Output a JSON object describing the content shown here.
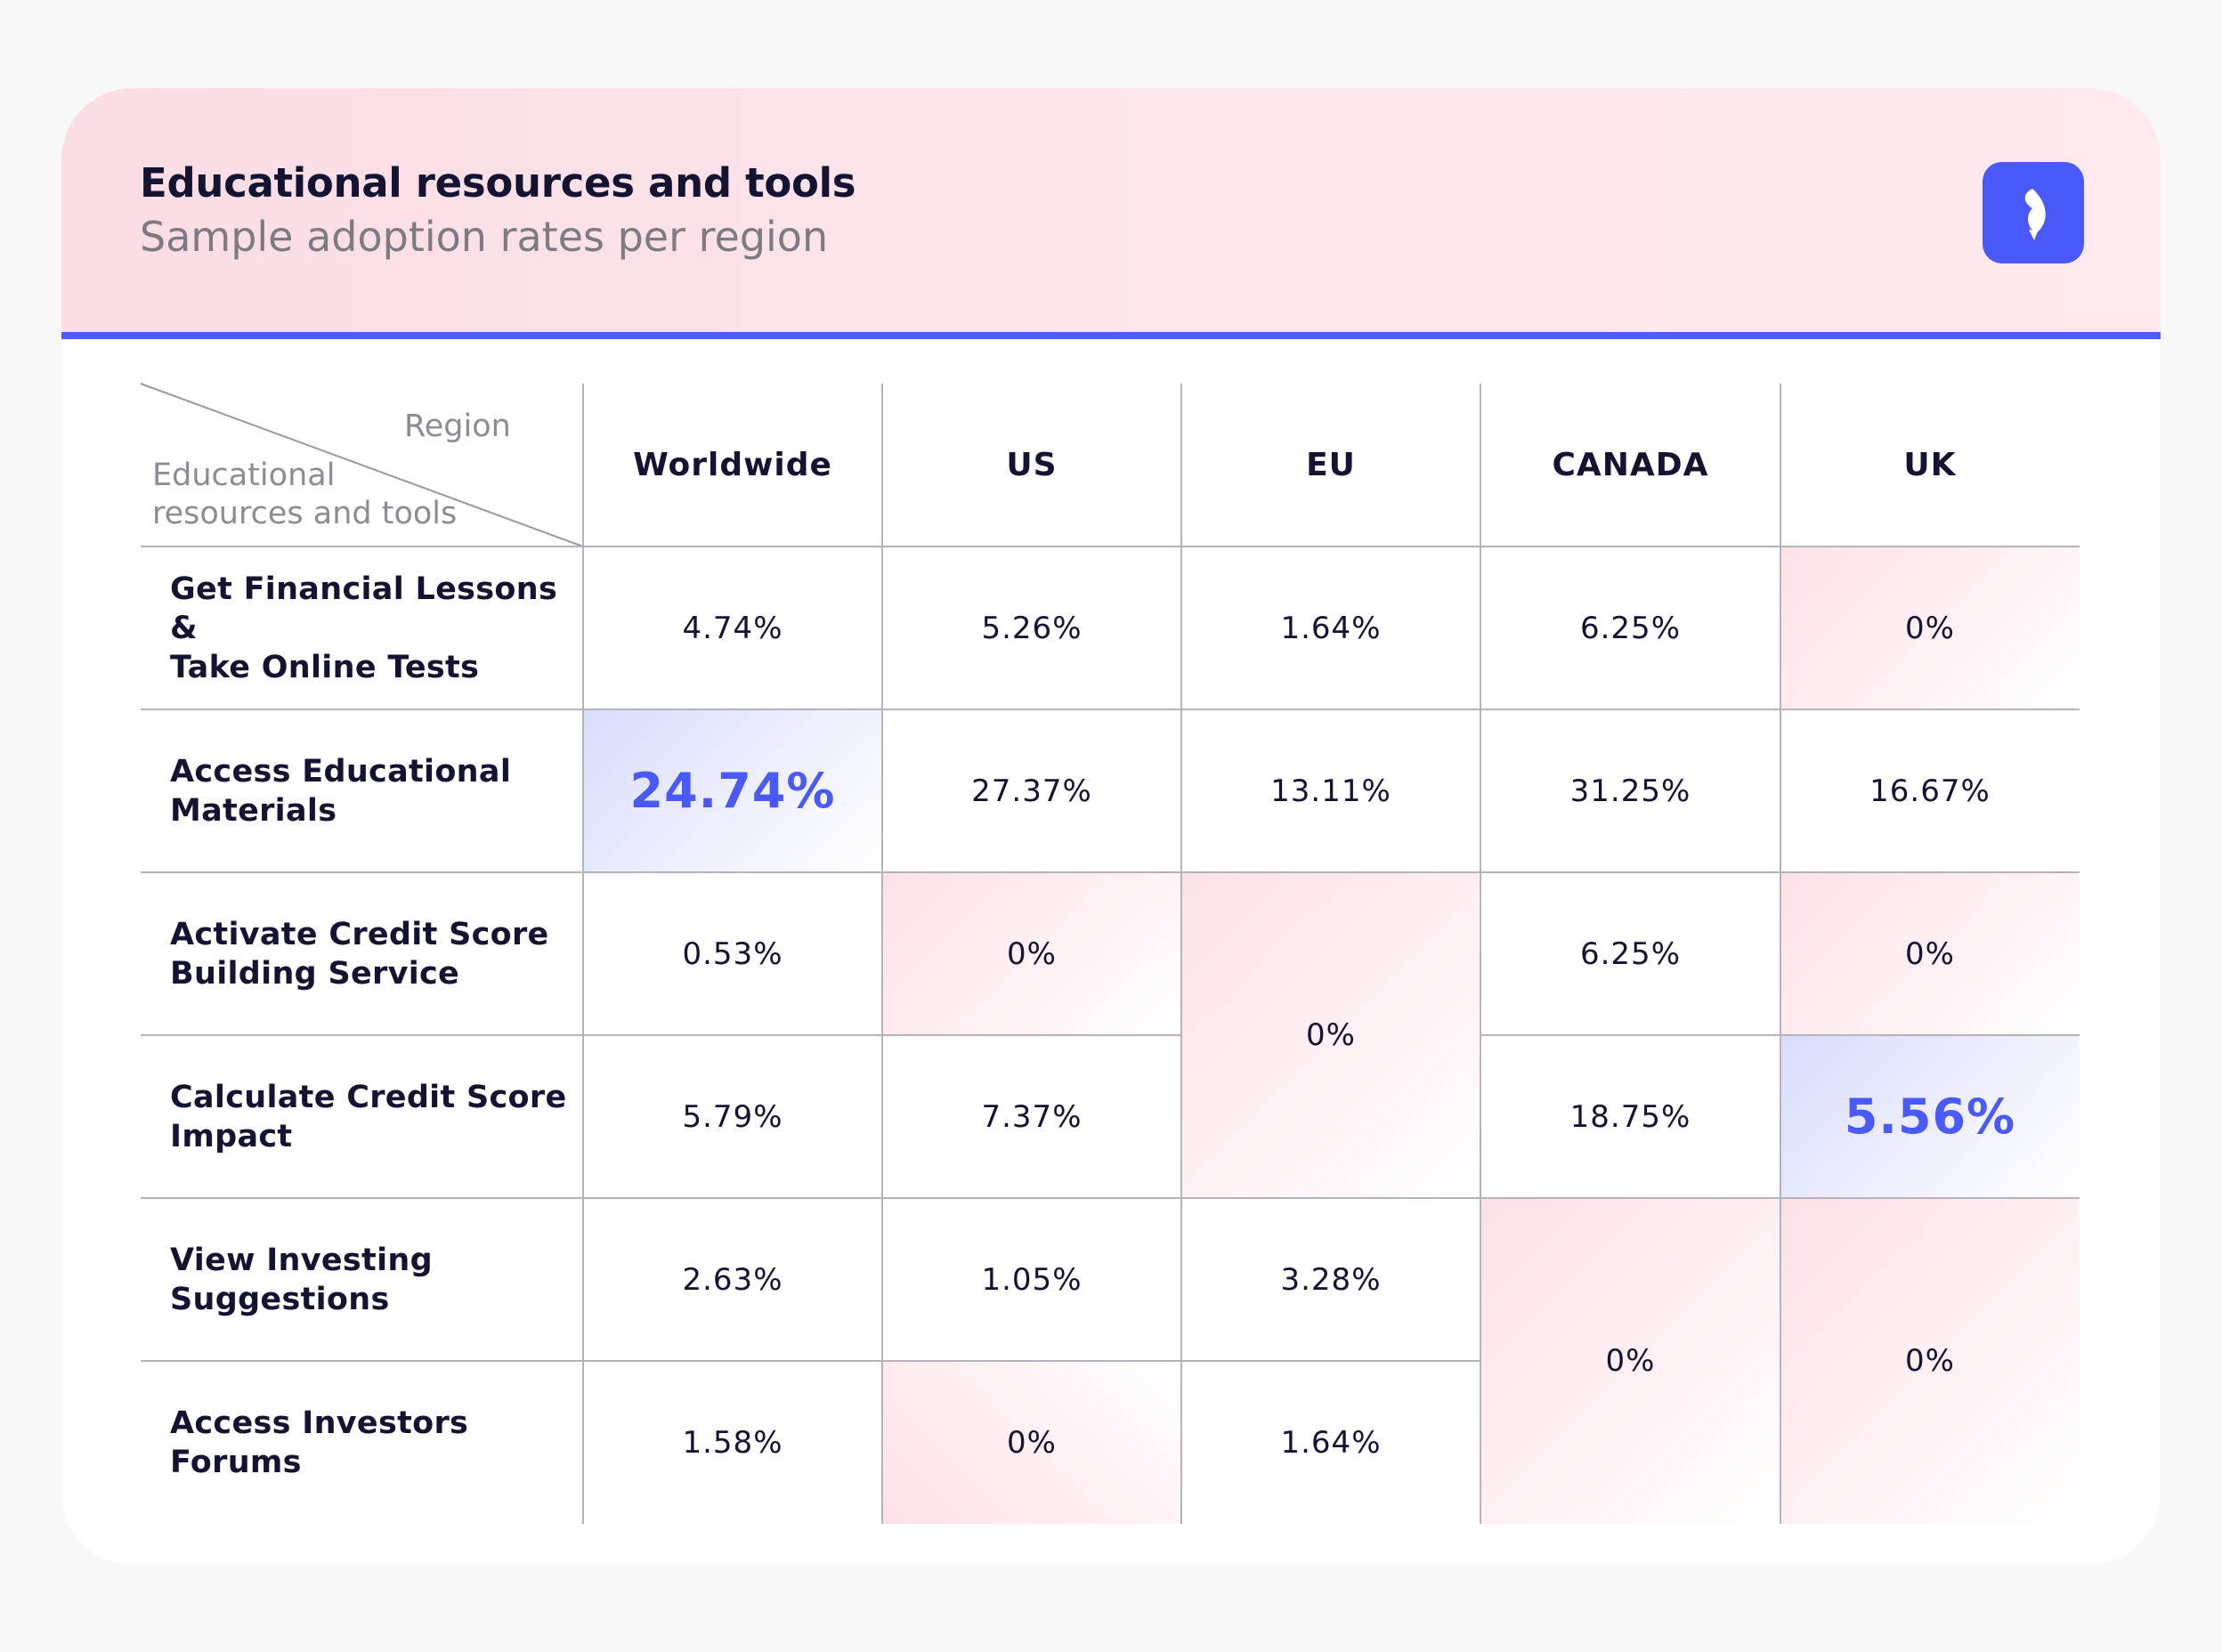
{
  "header": {
    "title": "Educational resources and tools",
    "subtitle": "Sample adoption rates per region"
  },
  "colors": {
    "accent": "#4a5af8",
    "header_bg": "#fde4ea",
    "low_highlight": "#fde0e7",
    "high_highlight": "#dadcfd"
  },
  "chart_data": {
    "type": "table",
    "corner": {
      "column_axis": "Region",
      "row_axis": "Educational\nresources and tools"
    },
    "columns": [
      "Worldwide",
      "US",
      "EU",
      "CANADA",
      "UK"
    ],
    "rows": [
      {
        "label": "Get Financial Lessons &\nTake Online Tests",
        "values": [
          "4.74%",
          "5.26%",
          "1.64%",
          "6.25%",
          "0%"
        ]
      },
      {
        "label": "Access Educational\nMaterials",
        "values": [
          "24.74%",
          "27.37%",
          "13.11%",
          "31.25%",
          "16.67%"
        ]
      },
      {
        "label": "Activate Credit Score\nBuilding Service",
        "values": [
          "0.53%",
          "0%",
          "0%",
          "6.25%",
          "0%"
        ]
      },
      {
        "label": "Calculate Credit Score\nImpact",
        "values": [
          "5.79%",
          "7.37%",
          "0%",
          "18.75%",
          "5.56%"
        ]
      },
      {
        "label": "View Investing\nSuggestions",
        "values": [
          "2.63%",
          "1.05%",
          "3.28%",
          "0%",
          "0%"
        ]
      },
      {
        "label": "Access Investors\nForums",
        "values": [
          "1.58%",
          "0%",
          "1.64%",
          "0%",
          "0%"
        ]
      }
    ],
    "merged_cells": [
      {
        "column": "EU",
        "rows": [
          2,
          3
        ],
        "value": "0%"
      },
      {
        "column": "CANADA",
        "rows": [
          4,
          5
        ],
        "value": "0%"
      },
      {
        "column": "UK",
        "rows": [
          4,
          5
        ],
        "value": "0%"
      }
    ],
    "highlighted_high": [
      {
        "row": 1,
        "column": "Worldwide",
        "value": "24.74%"
      },
      {
        "row": 3,
        "column": "UK",
        "value": "5.56%"
      }
    ]
  }
}
